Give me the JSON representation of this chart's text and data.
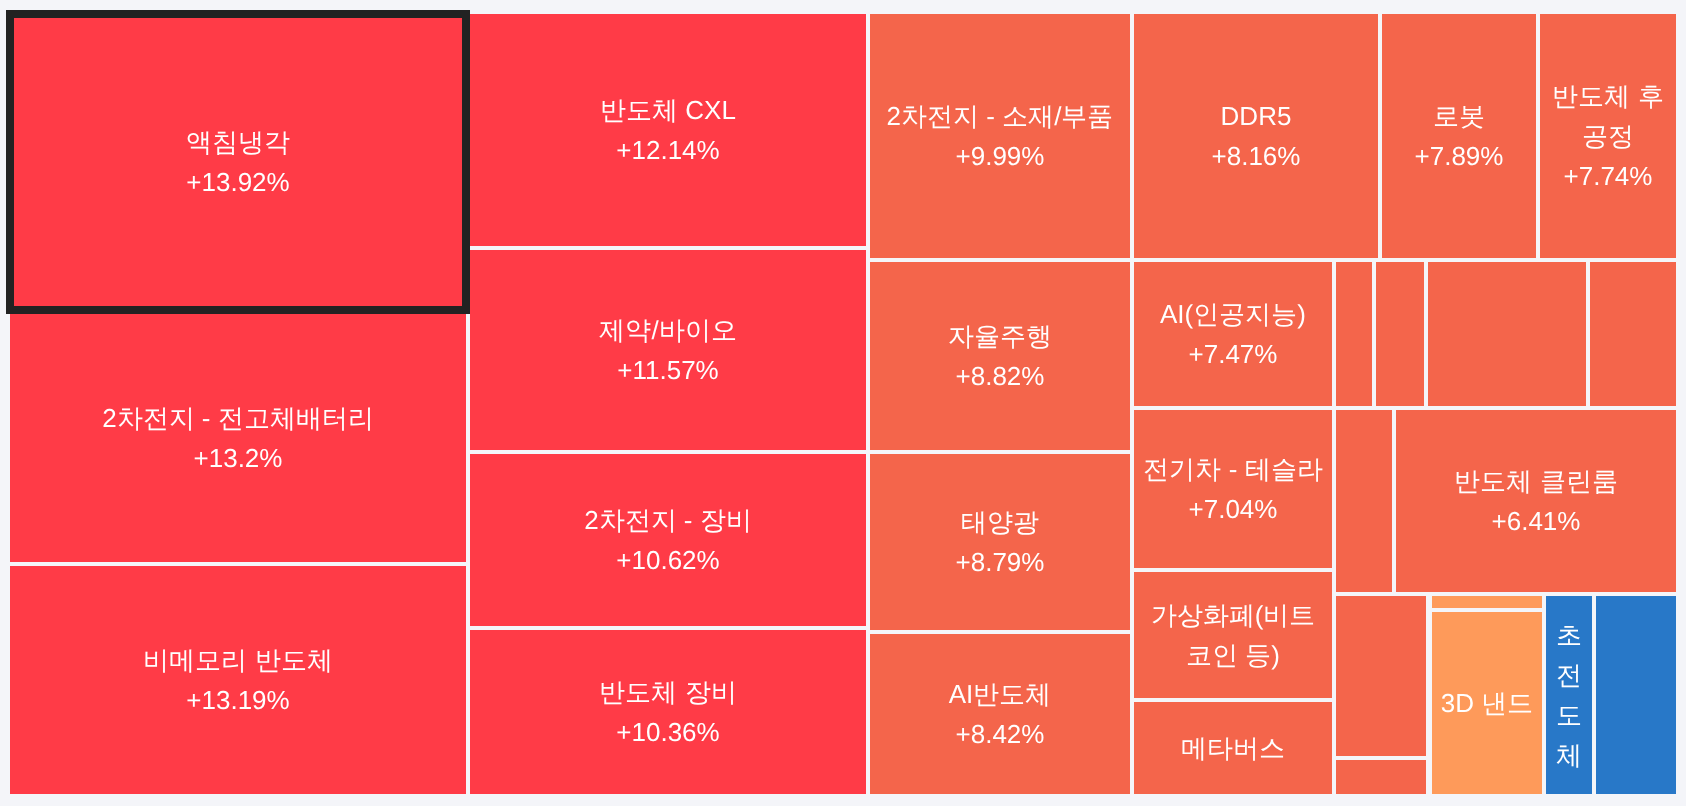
{
  "chart_data": {
    "type": "other",
    "categories": [
      "액침냉각",
      "2차전지 - 전고체배터리",
      "비메모리 반도체",
      "반도체 CXL",
      "제약/바이오",
      "2차전지 - 장비",
      "반도체 장비",
      "2차전지 - 소재/부품",
      "자율주행",
      "태양광",
      "AI반도체",
      "DDR5",
      "로봇",
      "반도체 후 공정",
      "AI(인공지능)",
      "전기차 - 테슬라",
      "가상화폐(비트코인 등)",
      "메타버스",
      null,
      null,
      null,
      null,
      null,
      "반도체 클린룸",
      null,
      null,
      null,
      "3D 낸드",
      "초전도체",
      null
    ],
    "values": [
      13.92,
      13.2,
      13.19,
      12.14,
      11.57,
      10.62,
      10.36,
      9.99,
      8.82,
      8.79,
      8.42,
      8.16,
      7.89,
      7.74,
      7.47,
      7.04,
      null,
      null,
      null,
      null,
      null,
      null,
      null,
      6.41,
      null,
      null,
      null,
      null,
      null,
      null
    ],
    "value_labels": [
      "+13.92%",
      "+13.2%",
      "+13.19%",
      "+12.14%",
      "+11.57%",
      "+10.62%",
      "+10.36%",
      "+9.99%",
      "+8.82%",
      "+8.79%",
      "+8.42%",
      "+8.16%",
      "+7.89%",
      "+7.74%",
      "+7.47%",
      "+7.04%",
      null,
      null,
      null,
      null,
      null,
      null,
      null,
      "+6.41%",
      null,
      null,
      null,
      null,
      null,
      null
    ],
    "colors": [
      "#ff3b47",
      "#ff3b47",
      "#ff3b47",
      "#ff3b47",
      "#ff3b47",
      "#ff3b47",
      "#ff3b47",
      "#f4654b",
      "#f4654b",
      "#f4654b",
      "#f4654b",
      "#f4654b",
      "#f4654b",
      "#f4654b",
      "#f4654b",
      "#f4654b",
      "#f4654b",
      "#f4654b",
      "#f4654b",
      "#f4654b",
      "#f4654b",
      "#f4654b",
      "#f4654b",
      "#f4654b",
      "#f4654b",
      "#f4654b",
      "#fe9a5a",
      "#fe9a5a",
      "#2878c8",
      "#2878c8"
    ]
  }
}
